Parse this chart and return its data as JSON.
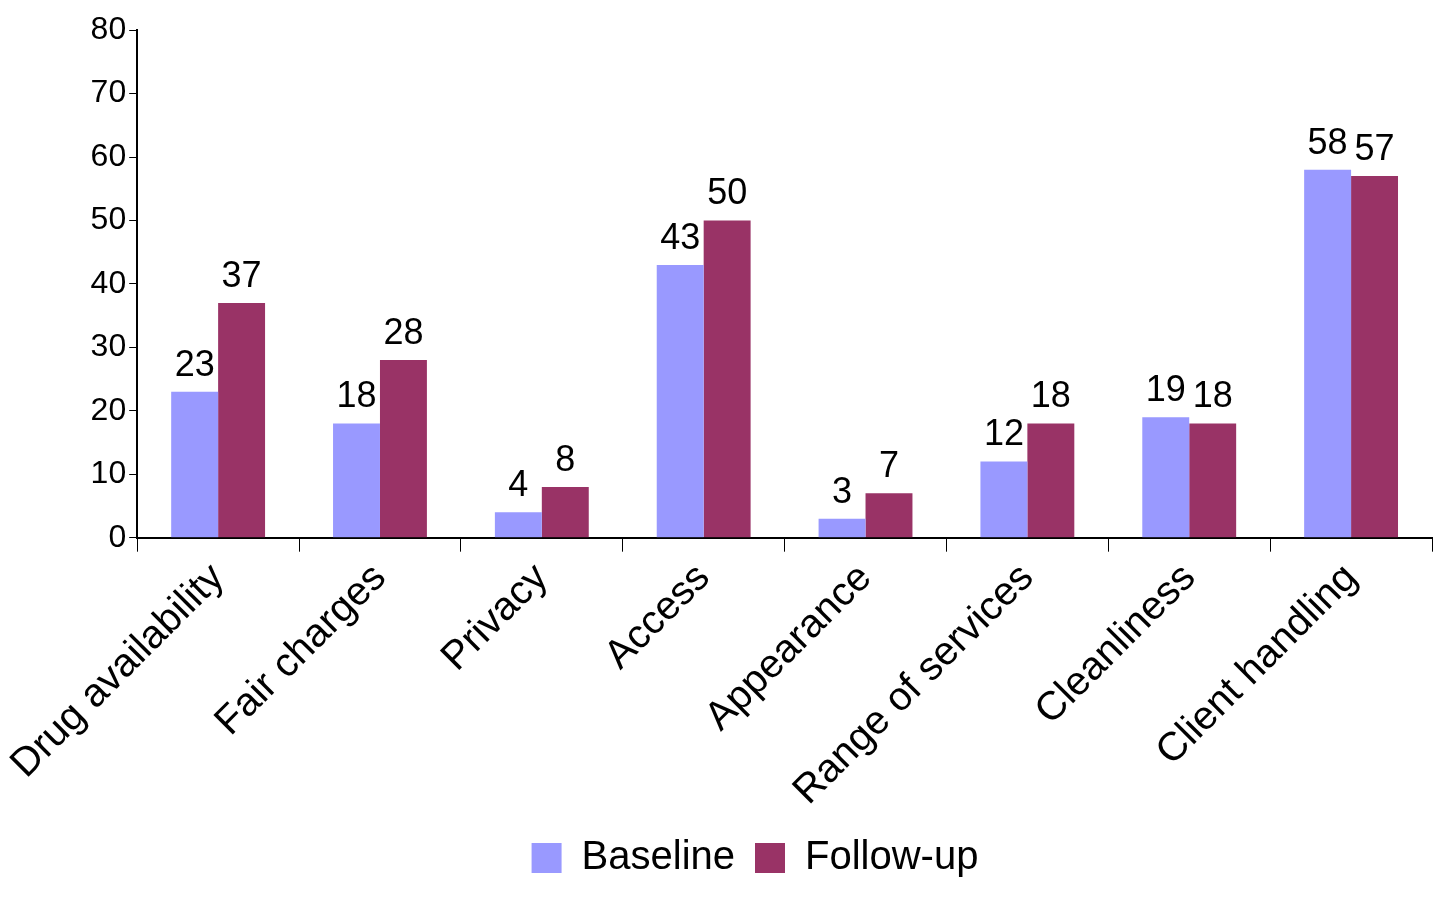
{
  "chart_data": {
    "type": "bar",
    "categories": [
      "Drug availability",
      "Fair charges",
      "Privacy",
      "Access",
      "Appearance",
      "Range of services",
      "Cleanliness",
      "Client handling"
    ],
    "series": [
      {
        "name": "Baseline",
        "color": "#9999ff",
        "values": [
          23,
          18,
          4,
          43,
          3,
          12,
          19,
          58
        ]
      },
      {
        "name": "Follow-up",
        "color": "#993366",
        "values": [
          37,
          28,
          8,
          50,
          7,
          18,
          18,
          57
        ]
      }
    ],
    "ylim": [
      0,
      80
    ],
    "yticks": [
      0,
      10,
      20,
      30,
      40,
      50,
      60,
      70,
      80
    ],
    "grid": false,
    "legend": "bottom",
    "data_labels": true
  }
}
